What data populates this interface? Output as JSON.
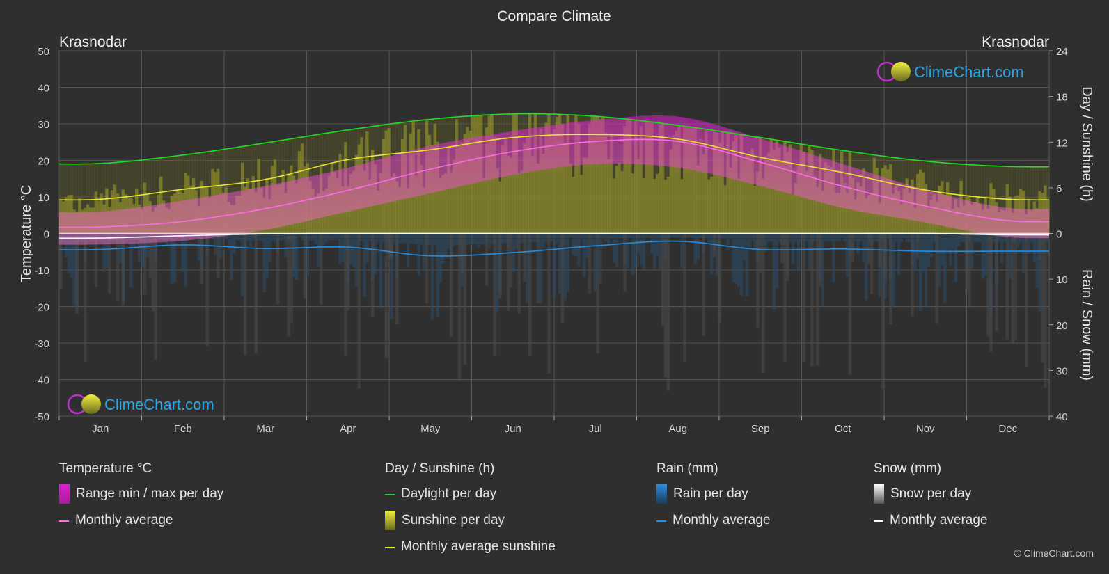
{
  "title": "Compare Climate",
  "left_location": "Krasnodar",
  "right_location": "Krasnodar",
  "watermark_text": "ClimeChart.com",
  "copyright": "© ClimeChart.com",
  "axes": {
    "left_label": "Temperature °C",
    "right_top_label": "Day / Sunshine (h)",
    "right_bottom_label": "Rain / Snow (mm)",
    "left_ticks": [
      "50",
      "40",
      "30",
      "20",
      "10",
      "0",
      "-10",
      "-20",
      "-30",
      "-40",
      "-50"
    ],
    "right_top_ticks": [
      "24",
      "18",
      "12",
      "6",
      "0"
    ],
    "right_bottom_ticks": [
      "10",
      "20",
      "30",
      "40"
    ],
    "months": [
      "Jan",
      "Feb",
      "Mar",
      "Apr",
      "May",
      "Jun",
      "Jul",
      "Aug",
      "Sep",
      "Oct",
      "Nov",
      "Dec"
    ]
  },
  "legend": {
    "temperature": {
      "header": "Temperature °C",
      "range_label": "Range min / max per day",
      "avg_label": "Monthly average"
    },
    "sunshine": {
      "header": "Day / Sunshine (h)",
      "daylight_label": "Daylight per day",
      "sunshine_label": "Sunshine per day",
      "avg_label": "Monthly average sunshine"
    },
    "rain": {
      "header": "Rain (mm)",
      "per_day_label": "Rain per day",
      "avg_label": "Monthly average"
    },
    "snow": {
      "header": "Snow (mm)",
      "per_day_label": "Snow per day",
      "avg_label": "Monthly average"
    }
  },
  "colors": {
    "background": "#2f2f2f",
    "grid": "#555555",
    "daylight": "#22dd22",
    "sunshine_avg": "#e8e832",
    "temp_avg": "#ff6ee8",
    "temp_range": "#e020d0",
    "rain": "#2a8ee0",
    "snow": "#ffffff",
    "sunshine_fill": "#a8a830"
  },
  "chart_data": {
    "type": "line",
    "x": [
      "Jan",
      "Feb",
      "Mar",
      "Apr",
      "May",
      "Jun",
      "Jul",
      "Aug",
      "Sep",
      "Oct",
      "Nov",
      "Dec"
    ],
    "temp_ylim": [
      -50,
      50
    ],
    "sun_ylim": [
      0,
      24
    ],
    "precip_ylim": [
      0,
      40
    ],
    "series": [
      {
        "name": "Daylight per day",
        "axis": "sun",
        "values": [
          9.2,
          10.3,
          11.9,
          13.6,
          15.0,
          15.7,
          15.4,
          14.2,
          12.6,
          10.9,
          9.5,
          8.8
        ]
      },
      {
        "name": "Monthly average sunshine",
        "axis": "sun",
        "values": [
          4.5,
          5.8,
          7.1,
          9.7,
          11.0,
          12.6,
          13.0,
          12.4,
          10.0,
          8.0,
          5.7,
          4.5
        ]
      },
      {
        "name": "Temperature monthly average",
        "axis": "temp",
        "values": [
          1.8,
          3.3,
          6.8,
          11.8,
          17.6,
          22.4,
          25.2,
          25.2,
          19.5,
          12.9,
          7.5,
          3.5
        ]
      },
      {
        "name": "Rain monthly average",
        "axis": "precip",
        "values": [
          3.5,
          2.5,
          3.3,
          3.0,
          4.9,
          4.2,
          2.7,
          1.7,
          3.5,
          3.4,
          3.9,
          3.9
        ]
      },
      {
        "name": "Snow monthly average",
        "axis": "precip",
        "values": [
          1.0,
          0.5,
          0.1,
          0.0,
          0.0,
          0.0,
          0.0,
          0.0,
          0.0,
          0.0,
          0.0,
          0.3
        ]
      }
    ],
    "temp_range": {
      "min": [
        -3,
        -2,
        1,
        6,
        11,
        16,
        19,
        18,
        13,
        7,
        3,
        -1
      ],
      "max": [
        6,
        9,
        13,
        18,
        24,
        28,
        31,
        32,
        26,
        19,
        12,
        7
      ]
    }
  }
}
